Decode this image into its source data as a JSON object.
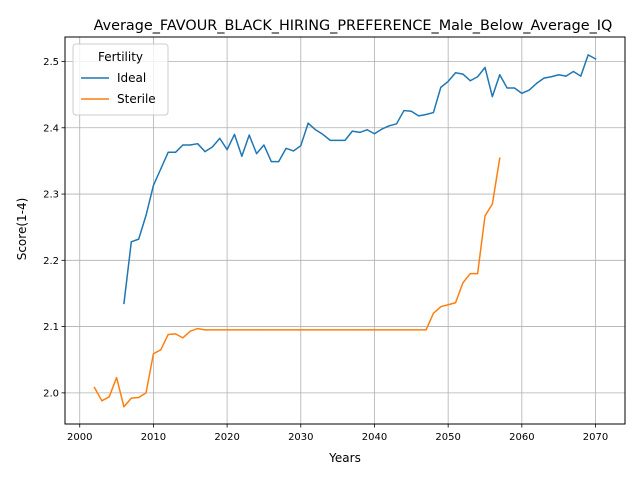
{
  "chart_data": {
    "type": "line",
    "title": "Average_FAVOUR_BLACK_HIRING_PREFERENCE_Male_Below_Average_IQ",
    "xlabel": "Years",
    "ylabel": "Score(1-4)",
    "xlim": [
      1998,
      2074
    ],
    "ylim": [
      1.953,
      2.537
    ],
    "xticks": [
      2000,
      2010,
      2020,
      2030,
      2040,
      2050,
      2060,
      2070
    ],
    "yticks": [
      2.0,
      2.1,
      2.2,
      2.3,
      2.4,
      2.5
    ],
    "xtick_labels": [
      "2000",
      "2010",
      "2020",
      "2030",
      "2040",
      "2050",
      "2060",
      "2070"
    ],
    "ytick_labels": [
      "2.0",
      "2.1",
      "2.2",
      "2.3",
      "2.4",
      "2.5"
    ],
    "grid": true,
    "legend": {
      "title": "Fertility",
      "placement": "top-left"
    },
    "series": [
      {
        "name": "Ideal",
        "color": "#1f77b4",
        "x": [
          2006,
          2007,
          2008,
          2009,
          2010,
          2011,
          2012,
          2013,
          2014,
          2015,
          2016,
          2017,
          2018,
          2019,
          2020,
          2021,
          2022,
          2023,
          2024,
          2025,
          2026,
          2027,
          2028,
          2029,
          2030,
          2031,
          2032,
          2033,
          2034,
          2035,
          2036,
          2037,
          2038,
          2039,
          2040,
          2041,
          2042,
          2043,
          2044,
          2045,
          2046,
          2047,
          2048,
          2049,
          2050,
          2051,
          2052,
          2053,
          2054,
          2055,
          2056,
          2057,
          2058,
          2059,
          2060,
          2061,
          2062,
          2063,
          2064,
          2065,
          2066,
          2067,
          2068,
          2069,
          2070
        ],
        "y": [
          2.135,
          2.228,
          2.232,
          2.268,
          2.313,
          2.338,
          2.363,
          2.363,
          2.374,
          2.374,
          2.376,
          2.364,
          2.371,
          2.384,
          2.367,
          2.39,
          2.357,
          2.389,
          2.361,
          2.374,
          2.349,
          2.349,
          2.369,
          2.365,
          2.373,
          2.407,
          2.397,
          2.39,
          2.381,
          2.381,
          2.381,
          2.395,
          2.393,
          2.397,
          2.391,
          2.398,
          2.403,
          2.406,
          2.426,
          2.425,
          2.418,
          2.42,
          2.423,
          2.461,
          2.47,
          2.483,
          2.481,
          2.471,
          2.477,
          2.491,
          2.447,
          2.48,
          2.46,
          2.46,
          2.452,
          2.457,
          2.467,
          2.475,
          2.477,
          2.48,
          2.478,
          2.485,
          2.478,
          2.51,
          2.504
        ]
      },
      {
        "name": "Sterile",
        "color": "#ff7f0e",
        "x": [
          2002,
          2003,
          2004,
          2005,
          2006,
          2007,
          2008,
          2009,
          2010,
          2011,
          2012,
          2013,
          2014,
          2015,
          2016,
          2017,
          2018,
          2019,
          2020,
          2021,
          2022,
          2023,
          2024,
          2025,
          2026,
          2027,
          2028,
          2029,
          2030,
          2031,
          2032,
          2033,
          2034,
          2035,
          2036,
          2037,
          2038,
          2039,
          2040,
          2041,
          2042,
          2043,
          2044,
          2045,
          2046,
          2047,
          2048,
          2049,
          2050,
          2051,
          2052,
          2053,
          2054,
          2055,
          2056,
          2057
        ],
        "y": [
          2.008,
          1.988,
          1.994,
          2.023,
          1.979,
          1.992,
          1.993,
          2.0,
          2.059,
          2.065,
          2.088,
          2.089,
          2.083,
          2.093,
          2.097,
          2.095,
          2.095,
          2.095,
          2.095,
          2.095,
          2.095,
          2.095,
          2.095,
          2.095,
          2.095,
          2.095,
          2.095,
          2.095,
          2.095,
          2.095,
          2.095,
          2.095,
          2.095,
          2.095,
          2.095,
          2.095,
          2.095,
          2.095,
          2.095,
          2.095,
          2.095,
          2.095,
          2.095,
          2.095,
          2.095,
          2.095,
          2.12,
          2.13,
          2.133,
          2.136,
          2.166,
          2.18,
          2.18,
          2.267,
          2.285,
          2.354
        ]
      }
    ]
  }
}
